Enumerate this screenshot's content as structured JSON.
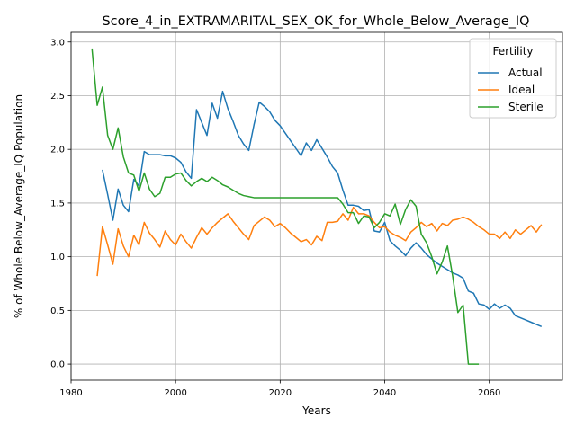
{
  "chart_data": {
    "type": "line",
    "title": "Score_4_in_EXTRAMARITAL_SEX_OK_for_Whole_Below_Average_IQ",
    "xlabel": "Years",
    "ylabel": "% of Whole Below_Average_IQ Population",
    "xlim": [
      1980,
      2074
    ],
    "ylim": [
      -0.15,
      3.09
    ],
    "xticks": [
      1980,
      2000,
      2020,
      2040,
      2060
    ],
    "xtick_labels": [
      "1980",
      "2000",
      "2020",
      "2040",
      "2060"
    ],
    "yticks": [
      0.0,
      0.5,
      1.0,
      1.5,
      2.0,
      2.5,
      3.0
    ],
    "ytick_labels": [
      "0.0",
      "0.5",
      "1.0",
      "1.5",
      "2.0",
      "2.5",
      "3.0"
    ],
    "grid": true,
    "legend": {
      "title": "Fertility",
      "placement": "top-right"
    },
    "series": [
      {
        "name": "Actual",
        "color": "#1f77b4",
        "points": [
          [
            1986,
            1.81
          ],
          [
            1987,
            1.58
          ],
          [
            1988,
            1.34
          ],
          [
            1989,
            1.63
          ],
          [
            1990,
            1.48
          ],
          [
            1991,
            1.42
          ],
          [
            1992,
            1.72
          ],
          [
            1993,
            1.66
          ],
          [
            1994,
            1.98
          ],
          [
            1995,
            1.95
          ],
          [
            1996,
            1.95
          ],
          [
            1997,
            1.95
          ],
          [
            1998,
            1.94
          ],
          [
            1999,
            1.94
          ],
          [
            2000,
            1.92
          ],
          [
            2001,
            1.88
          ],
          [
            2002,
            1.79
          ],
          [
            2003,
            1.73
          ],
          [
            2004,
            2.37
          ],
          [
            2005,
            2.25
          ],
          [
            2006,
            2.13
          ],
          [
            2007,
            2.43
          ],
          [
            2008,
            2.29
          ],
          [
            2009,
            2.54
          ],
          [
            2010,
            2.38
          ],
          [
            2011,
            2.26
          ],
          [
            2012,
            2.13
          ],
          [
            2013,
            2.05
          ],
          [
            2014,
            1.99
          ],
          [
            2015,
            2.23
          ],
          [
            2016,
            2.44
          ],
          [
            2017,
            2.4
          ],
          [
            2018,
            2.35
          ],
          [
            2019,
            2.27
          ],
          [
            2020,
            2.22
          ],
          [
            2021,
            2.15
          ],
          [
            2022,
            2.08
          ],
          [
            2023,
            2.01
          ],
          [
            2024,
            1.94
          ],
          [
            2025,
            2.06
          ],
          [
            2026,
            1.99
          ],
          [
            2027,
            2.09
          ],
          [
            2028,
            2.01
          ],
          [
            2029,
            1.93
          ],
          [
            2030,
            1.84
          ],
          [
            2031,
            1.78
          ],
          [
            2032,
            1.62
          ],
          [
            2033,
            1.48
          ],
          [
            2034,
            1.48
          ],
          [
            2035,
            1.47
          ],
          [
            2036,
            1.43
          ],
          [
            2037,
            1.44
          ],
          [
            2038,
            1.24
          ],
          [
            2039,
            1.23
          ],
          [
            2040,
            1.32
          ],
          [
            2041,
            1.15
          ],
          [
            2042,
            1.1
          ],
          [
            2043,
            1.06
          ],
          [
            2044,
            1.01
          ],
          [
            2045,
            1.08
          ],
          [
            2046,
            1.13
          ],
          [
            2047,
            1.08
          ],
          [
            2048,
            1.02
          ],
          [
            2049,
            0.98
          ],
          [
            2050,
            0.94
          ],
          [
            2051,
            0.91
          ],
          [
            2052,
            0.88
          ],
          [
            2053,
            0.85
          ],
          [
            2054,
            0.83
          ],
          [
            2055,
            0.8
          ],
          [
            2056,
            0.68
          ],
          [
            2057,
            0.66
          ],
          [
            2058,
            0.56
          ],
          [
            2059,
            0.55
          ],
          [
            2060,
            0.51
          ],
          [
            2061,
            0.56
          ],
          [
            2062,
            0.52
          ],
          [
            2063,
            0.55
          ],
          [
            2064,
            0.52
          ],
          [
            2065,
            0.45
          ],
          [
            2066,
            0.43
          ],
          [
            2067,
            0.41
          ],
          [
            2068,
            0.39
          ],
          [
            2069,
            0.37
          ],
          [
            2070,
            0.35
          ]
        ]
      },
      {
        "name": "Ideal",
        "color": "#ff7f0e",
        "points": [
          [
            1985,
            0.82
          ],
          [
            1986,
            1.28
          ],
          [
            1987,
            1.11
          ],
          [
            1988,
            0.93
          ],
          [
            1989,
            1.26
          ],
          [
            1990,
            1.1
          ],
          [
            1991,
            1.0
          ],
          [
            1992,
            1.2
          ],
          [
            1993,
            1.11
          ],
          [
            1994,
            1.32
          ],
          [
            1995,
            1.22
          ],
          [
            1996,
            1.16
          ],
          [
            1997,
            1.09
          ],
          [
            1998,
            1.24
          ],
          [
            1999,
            1.16
          ],
          [
            2000,
            1.11
          ],
          [
            2001,
            1.21
          ],
          [
            2002,
            1.14
          ],
          [
            2003,
            1.08
          ],
          [
            2004,
            1.18
          ],
          [
            2005,
            1.27
          ],
          [
            2006,
            1.21
          ],
          [
            2007,
            1.27
          ],
          [
            2008,
            1.32
          ],
          [
            2009,
            1.36
          ],
          [
            2010,
            1.4
          ],
          [
            2011,
            1.33
          ],
          [
            2012,
            1.27
          ],
          [
            2013,
            1.21
          ],
          [
            2014,
            1.16
          ],
          [
            2015,
            1.29
          ],
          [
            2016,
            1.33
          ],
          [
            2017,
            1.37
          ],
          [
            2018,
            1.34
          ],
          [
            2019,
            1.28
          ],
          [
            2020,
            1.31
          ],
          [
            2021,
            1.27
          ],
          [
            2022,
            1.22
          ],
          [
            2023,
            1.18
          ],
          [
            2024,
            1.14
          ],
          [
            2025,
            1.16
          ],
          [
            2026,
            1.11
          ],
          [
            2027,
            1.19
          ],
          [
            2028,
            1.15
          ],
          [
            2029,
            1.32
          ],
          [
            2030,
            1.32
          ],
          [
            2031,
            1.33
          ],
          [
            2032,
            1.4
          ],
          [
            2033,
            1.34
          ],
          [
            2034,
            1.46
          ],
          [
            2035,
            1.4
          ],
          [
            2036,
            1.4
          ],
          [
            2037,
            1.38
          ],
          [
            2038,
            1.32
          ],
          [
            2039,
            1.27
          ],
          [
            2040,
            1.28
          ],
          [
            2041,
            1.23
          ],
          [
            2042,
            1.2
          ],
          [
            2043,
            1.18
          ],
          [
            2044,
            1.15
          ],
          [
            2045,
            1.23
          ],
          [
            2046,
            1.27
          ],
          [
            2047,
            1.32
          ],
          [
            2048,
            1.28
          ],
          [
            2049,
            1.31
          ],
          [
            2050,
            1.24
          ],
          [
            2051,
            1.31
          ],
          [
            2052,
            1.29
          ],
          [
            2053,
            1.34
          ],
          [
            2054,
            1.35
          ],
          [
            2055,
            1.37
          ],
          [
            2056,
            1.35
          ],
          [
            2057,
            1.32
          ],
          [
            2058,
            1.28
          ],
          [
            2059,
            1.25
          ],
          [
            2060,
            1.21
          ],
          [
            2061,
            1.21
          ],
          [
            2062,
            1.17
          ],
          [
            2063,
            1.23
          ],
          [
            2064,
            1.17
          ],
          [
            2065,
            1.25
          ],
          [
            2066,
            1.21
          ],
          [
            2067,
            1.25
          ],
          [
            2068,
            1.29
          ],
          [
            2069,
            1.23
          ],
          [
            2070,
            1.3
          ]
        ]
      },
      {
        "name": "Sterile",
        "color": "#2ca02c",
        "points": [
          [
            1984,
            2.94
          ],
          [
            1985,
            2.41
          ],
          [
            1986,
            2.58
          ],
          [
            1987,
            2.13
          ],
          [
            1988,
            2.0
          ],
          [
            1989,
            2.2
          ],
          [
            1990,
            1.93
          ],
          [
            1991,
            1.78
          ],
          [
            1992,
            1.76
          ],
          [
            1993,
            1.61
          ],
          [
            1994,
            1.78
          ],
          [
            1995,
            1.63
          ],
          [
            1996,
            1.56
          ],
          [
            1997,
            1.59
          ],
          [
            1998,
            1.74
          ],
          [
            1999,
            1.74
          ],
          [
            2000,
            1.77
          ],
          [
            2001,
            1.78
          ],
          [
            2002,
            1.71
          ],
          [
            2003,
            1.66
          ],
          [
            2004,
            1.7
          ],
          [
            2005,
            1.73
          ],
          [
            2006,
            1.7
          ],
          [
            2007,
            1.74
          ],
          [
            2008,
            1.71
          ],
          [
            2009,
            1.67
          ],
          [
            2010,
            1.65
          ],
          [
            2011,
            1.62
          ],
          [
            2012,
            1.59
          ],
          [
            2013,
            1.57
          ],
          [
            2014,
            1.56
          ],
          [
            2015,
            1.55
          ],
          [
            2016,
            1.55
          ],
          [
            2017,
            1.55
          ],
          [
            2018,
            1.55
          ],
          [
            2019,
            1.55
          ],
          [
            2020,
            1.55
          ],
          [
            2021,
            1.55
          ],
          [
            2022,
            1.55
          ],
          [
            2023,
            1.55
          ],
          [
            2024,
            1.55
          ],
          [
            2025,
            1.55
          ],
          [
            2026,
            1.55
          ],
          [
            2027,
            1.55
          ],
          [
            2028,
            1.55
          ],
          [
            2029,
            1.55
          ],
          [
            2030,
            1.55
          ],
          [
            2031,
            1.55
          ],
          [
            2032,
            1.49
          ],
          [
            2033,
            1.41
          ],
          [
            2034,
            1.41
          ],
          [
            2035,
            1.31
          ],
          [
            2036,
            1.38
          ],
          [
            2037,
            1.37
          ],
          [
            2038,
            1.27
          ],
          [
            2039,
            1.32
          ],
          [
            2040,
            1.4
          ],
          [
            2041,
            1.38
          ],
          [
            2042,
            1.49
          ],
          [
            2043,
            1.3
          ],
          [
            2044,
            1.44
          ],
          [
            2045,
            1.53
          ],
          [
            2046,
            1.47
          ],
          [
            2047,
            1.21
          ],
          [
            2048,
            1.13
          ],
          [
            2049,
            1.0
          ],
          [
            2050,
            0.84
          ],
          [
            2051,
            0.95
          ],
          [
            2052,
            1.1
          ],
          [
            2053,
            0.82
          ],
          [
            2054,
            0.48
          ],
          [
            2055,
            0.55
          ],
          [
            2056,
            0.0
          ],
          [
            2057,
            0.0
          ],
          [
            2058,
            0.0
          ]
        ]
      }
    ]
  }
}
